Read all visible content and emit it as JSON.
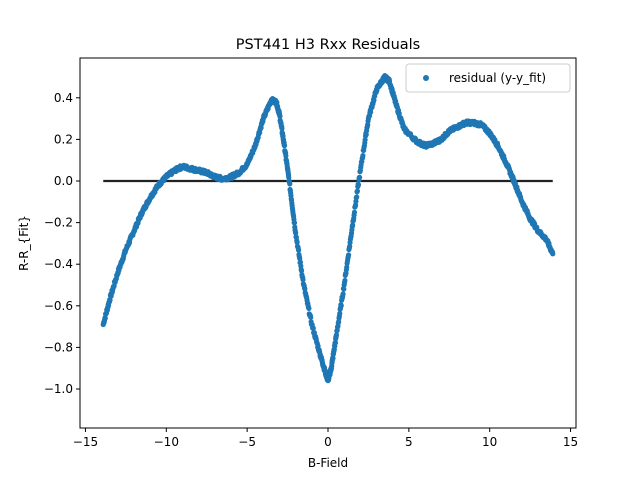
{
  "chart_data": {
    "type": "scatter",
    "title": "PST441 H3 Rxx Residuals",
    "xlabel": "B-Field",
    "ylabel": "R-R_{Fit}",
    "xlim": [
      -15,
      15
    ],
    "ylim": [
      -1.0,
      0.4
    ],
    "x_ticks": [
      -15,
      -10,
      -5,
      0,
      5,
      10,
      15
    ],
    "y_ticks": [
      -1.0,
      -0.8,
      -0.6,
      -0.4,
      -0.2,
      0.0,
      0.2,
      0.4
    ],
    "legend": {
      "position": "top-right",
      "entries": [
        "residual (y-y_fit)"
      ]
    },
    "colors": {
      "series": "#1f77b4",
      "zero_line": "#222222"
    },
    "series": [
      {
        "name": "residual (y-y_fit)",
        "x": [
          -13.9,
          -13.5,
          -13.0,
          -12.5,
          -12.0,
          -11.5,
          -11.0,
          -10.5,
          -10.0,
          -9.5,
          -9.0,
          -8.5,
          -8.0,
          -7.5,
          -7.0,
          -6.5,
          -6.0,
          -5.5,
          -5.0,
          -4.5,
          -4.0,
          -3.5,
          -3.2,
          -3.0,
          -2.7,
          -2.4,
          -2.0,
          -1.5,
          -1.0,
          -0.5,
          -0.2,
          0.0,
          0.2,
          0.5,
          1.0,
          1.5,
          2.0,
          2.5,
          3.0,
          3.5,
          3.8,
          4.2,
          4.7,
          5.5,
          6.0,
          6.5,
          7.0,
          7.5,
          8.0,
          8.5,
          9.0,
          9.5,
          10.0,
          10.5,
          11.0,
          11.5,
          12.0,
          12.5,
          13.0,
          13.5,
          13.9
        ],
        "y": [
          -0.69,
          -0.57,
          -0.44,
          -0.33,
          -0.24,
          -0.15,
          -0.08,
          -0.02,
          0.02,
          0.05,
          0.07,
          0.06,
          0.05,
          0.04,
          0.02,
          0.01,
          0.02,
          0.04,
          0.08,
          0.17,
          0.3,
          0.39,
          0.38,
          0.32,
          0.17,
          0.0,
          -0.25,
          -0.5,
          -0.69,
          -0.83,
          -0.91,
          -0.96,
          -0.9,
          -0.75,
          -0.5,
          -0.22,
          0.05,
          0.3,
          0.44,
          0.5,
          0.48,
          0.37,
          0.25,
          0.19,
          0.17,
          0.18,
          0.2,
          0.24,
          0.26,
          0.28,
          0.28,
          0.27,
          0.23,
          0.17,
          0.09,
          0.0,
          -0.1,
          -0.18,
          -0.24,
          -0.28,
          -0.35
        ]
      }
    ],
    "reference_line": {
      "y": 0.0,
      "x_range": [
        -13.9,
        13.9
      ]
    }
  }
}
